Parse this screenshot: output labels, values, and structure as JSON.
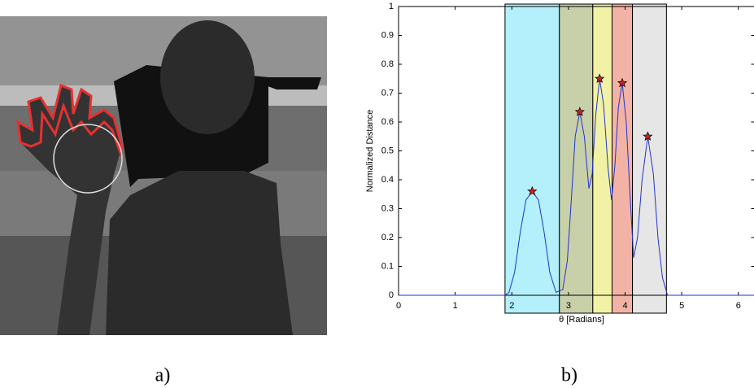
{
  "captions": [
    "a)",
    "b)"
  ],
  "chart_data": {
    "type": "line",
    "x_label": "θ [Radians]",
    "y_label": "Normalized Distance",
    "xlim": [
      0,
      6.2832
    ],
    "ylim": [
      0,
      1
    ],
    "xticks": [
      0,
      1,
      2,
      3,
      4,
      5,
      6
    ],
    "yticks": [
      0,
      0.1,
      0.2,
      0.3,
      0.4,
      0.5,
      0.6,
      0.7,
      0.8,
      0.9,
      1
    ],
    "regions": [
      {
        "range": [
          1.88,
          2.84
        ],
        "color": "#b3f0fb"
      },
      {
        "range": [
          2.84,
          3.43
        ],
        "color": "#c8d0aa"
      },
      {
        "range": [
          3.43,
          3.77
        ],
        "color": "#f2f2a6"
      },
      {
        "range": [
          3.77,
          4.13
        ],
        "color": "#f2b3a6"
      },
      {
        "range": [
          4.13,
          4.73
        ],
        "color": "#e6e6e6"
      }
    ],
    "series": [
      {
        "color": "#2233cc",
        "x": [
          0,
          1.88,
          1.95,
          2.05,
          2.15,
          2.25,
          2.36,
          2.47,
          2.57,
          2.67,
          2.78,
          2.9,
          2.98,
          3.05,
          3.12,
          3.2,
          3.28,
          3.36,
          3.42,
          3.48,
          3.55,
          3.62,
          3.7,
          3.76,
          3.82,
          3.88,
          3.95,
          4.02,
          4.1,
          4.15,
          4.22,
          4.3,
          4.4,
          4.5,
          4.58,
          4.66,
          4.75,
          6.2832
        ],
        "values": [
          0,
          0,
          0.01,
          0.08,
          0.22,
          0.33,
          0.36,
          0.33,
          0.22,
          0.08,
          0.01,
          0.02,
          0.12,
          0.33,
          0.55,
          0.635,
          0.55,
          0.37,
          0.42,
          0.62,
          0.75,
          0.66,
          0.44,
          0.33,
          0.45,
          0.65,
          0.735,
          0.6,
          0.3,
          0.13,
          0.2,
          0.4,
          0.55,
          0.42,
          0.2,
          0.06,
          0,
          0
        ]
      }
    ],
    "peaks": {
      "color": "#cc2222",
      "x": [
        2.36,
        3.2,
        3.55,
        3.95,
        4.4
      ],
      "values": [
        0.36,
        0.635,
        0.75,
        0.735,
        0.55
      ]
    }
  }
}
